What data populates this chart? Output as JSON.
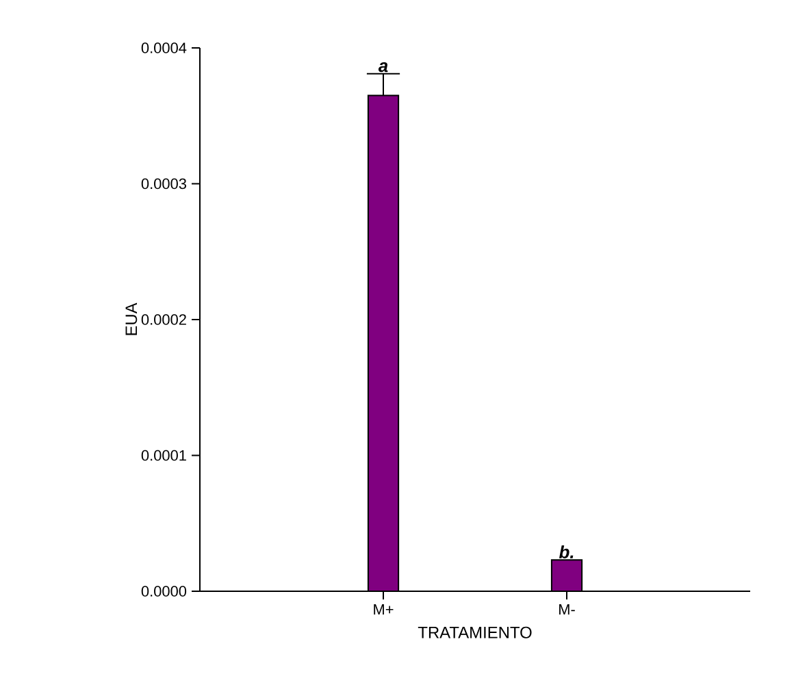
{
  "chart_data": {
    "type": "bar",
    "xlabel": "TRATAMIENTO",
    "ylabel": "EUA",
    "categories": [
      "M+",
      "M-"
    ],
    "values": [
      0.000365,
      2.3e-05
    ],
    "errors": [
      [
        0.000365,
        0.000381
      ],
      null
    ],
    "color": "#800080",
    "ylim": [
      0,
      0.0004
    ],
    "yticks": [
      {
        "value": 0,
        "label": "0.0000"
      },
      {
        "value": 0.0001,
        "label": "0.0001"
      },
      {
        "value": 0.0002,
        "label": "0.0002"
      },
      {
        "value": 0.0003,
        "label": "0.0003"
      },
      {
        "value": 0.0004,
        "label": "0.0004"
      }
    ],
    "annotations": [
      {
        "text": "a",
        "x": "M+",
        "y": 0.000381
      },
      {
        "text": "b.",
        "x": "M-",
        "y": 2.3e-05
      }
    ]
  }
}
